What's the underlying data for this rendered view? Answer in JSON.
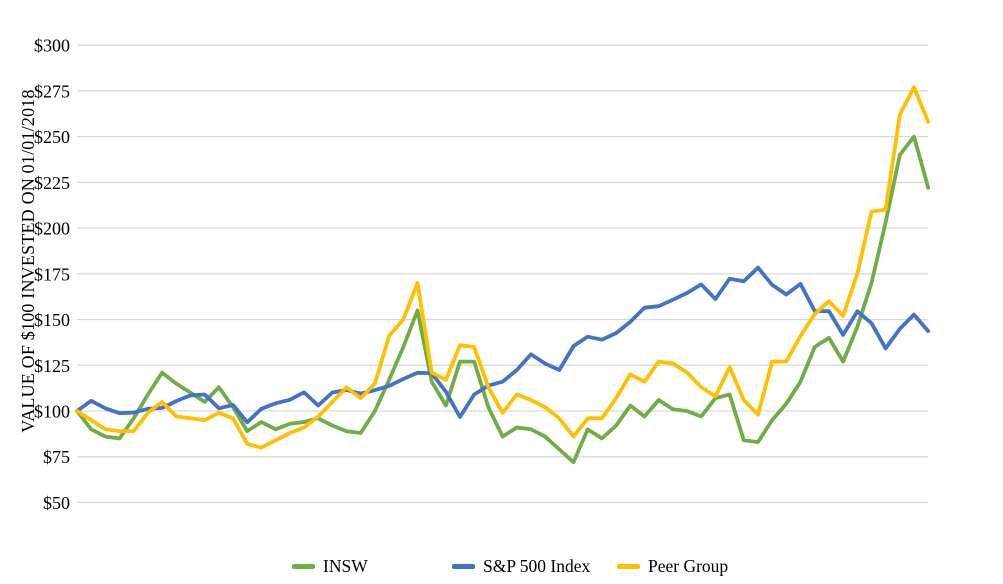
{
  "chart_data": {
    "type": "line",
    "title": "",
    "ylabel": "VALUE OF $100 INVESTED ON 01/01/2018",
    "xlabel": "",
    "x_count": 61,
    "x_note": "monthly data points starting 01/01/2018; no x-axis tick labels are shown",
    "ylim": [
      50,
      300
    ],
    "y_tick_step": 25,
    "y_ticks": [
      "$300",
      "$275",
      "$250",
      "$225",
      "$200",
      "$175",
      "$150",
      "$125",
      "$100",
      "$75",
      "$50"
    ],
    "y_tick_values": [
      300,
      275,
      250,
      225,
      200,
      175,
      150,
      125,
      100,
      75,
      50
    ],
    "grid": true,
    "legend_position": "bottom",
    "series": [
      {
        "name": "INSW",
        "color": "#70AD47",
        "values": [
          100,
          90,
          86,
          85,
          96,
          109,
          121,
          115,
          110,
          105,
          113,
          102,
          89,
          94,
          90,
          93,
          94,
          96,
          92,
          89,
          88,
          100,
          117,
          135,
          155,
          116,
          103,
          127,
          127,
          102,
          86,
          91,
          90,
          86,
          79,
          72,
          90,
          85,
          92,
          103,
          97,
          106,
          101,
          100,
          97,
          107,
          109,
          84,
          83,
          95,
          104,
          116,
          135,
          140,
          127,
          146,
          170,
          203,
          240,
          250,
          222
        ]
      },
      {
        "name": "S&P 500 Index",
        "color": "#4472C4",
        "values": [
          100,
          105.6,
          101.5,
          98.8,
          99.1,
          101.2,
          101.7,
          105.4,
          108.6,
          109,
          101.5,
          103.3,
          93.8,
          101.2,
          104.2,
          106.1,
          110.2,
          103,
          110.1,
          111.5,
          109.5,
          111.4,
          113.7,
          117.5,
          120.9,
          120.7,
          110.5,
          96.7,
          109,
          113.9,
          116,
          122.4,
          131,
          125.9,
          122.4,
          135.5,
          140.6,
          139,
          142.6,
          148.7,
          156.5,
          157.3,
          160.8,
          164.5,
          169.2,
          161.2,
          172.3,
          170.9,
          178.4,
          169,
          163.7,
          169.5,
          154.6,
          154.6,
          141.6,
          154.5,
          148,
          134.2,
          144.9,
          152.7,
          143.7
        ]
      },
      {
        "name": "Peer Group",
        "color": "#FFC000",
        "values": [
          100,
          95,
          90,
          89,
          89,
          99,
          105,
          97,
          96,
          95,
          99,
          96,
          82,
          80,
          84,
          88,
          91,
          97,
          105,
          113,
          107,
          115,
          141,
          150,
          170,
          121,
          117,
          136,
          135,
          113,
          99,
          109,
          106,
          102,
          96,
          86,
          96,
          96,
          107,
          120,
          116,
          127,
          126,
          121,
          113,
          108,
          124,
          106,
          98,
          127,
          127,
          141,
          153,
          160,
          152,
          175,
          209,
          210,
          262,
          277,
          258
        ]
      }
    ]
  },
  "colors": {
    "background": "#ffffff",
    "gridline": "#d9d9d9",
    "text": "#000000"
  }
}
